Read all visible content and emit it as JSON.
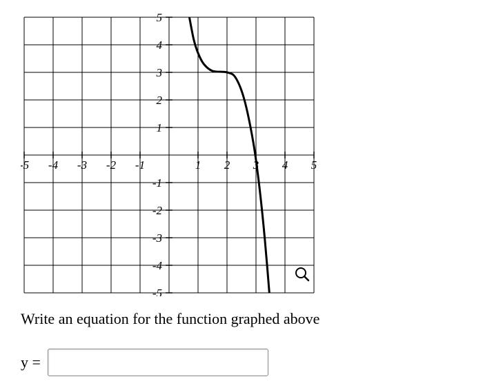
{
  "graph": {
    "type": "function-curve",
    "xlim": [
      -5,
      5
    ],
    "ylim": [
      -5,
      5
    ],
    "xtick_step": 1,
    "ytick_step": 1,
    "x_labels": [
      "-5",
      "-4",
      "-3",
      "-2",
      "-1",
      "",
      "1",
      "2",
      "3",
      "4",
      "5"
    ],
    "y_labels": [
      "-5",
      "-4",
      "-3",
      "-2",
      "-1",
      "",
      "1",
      "2",
      "3",
      "4",
      "5"
    ],
    "label_fontsize": 17,
    "grid_color": "#000000",
    "grid_width": 1,
    "axis_color": "#000000",
    "axis_width": 1,
    "background_color": "#ffffff",
    "curve_color": "#000000",
    "curve_width": 3,
    "curve_points": [
      [
        0.6,
        5.5
      ],
      [
        0.7,
        5.0
      ],
      [
        0.85,
        4.2
      ],
      [
        1.0,
        3.7
      ],
      [
        1.2,
        3.3
      ],
      [
        1.5,
        3.05
      ],
      [
        2.0,
        3.0
      ],
      [
        2.3,
        2.8
      ],
      [
        2.6,
        2.0
      ],
      [
        2.9,
        0.5
      ],
      [
        3.1,
        -1.0
      ],
      [
        3.3,
        -3.0
      ],
      [
        3.5,
        -5.5
      ]
    ]
  },
  "prompt": "Write an equation for the function graphed above",
  "input": {
    "label": "y =",
    "value": "",
    "placeholder": ""
  },
  "magnifier_icon": "magnifier-icon"
}
